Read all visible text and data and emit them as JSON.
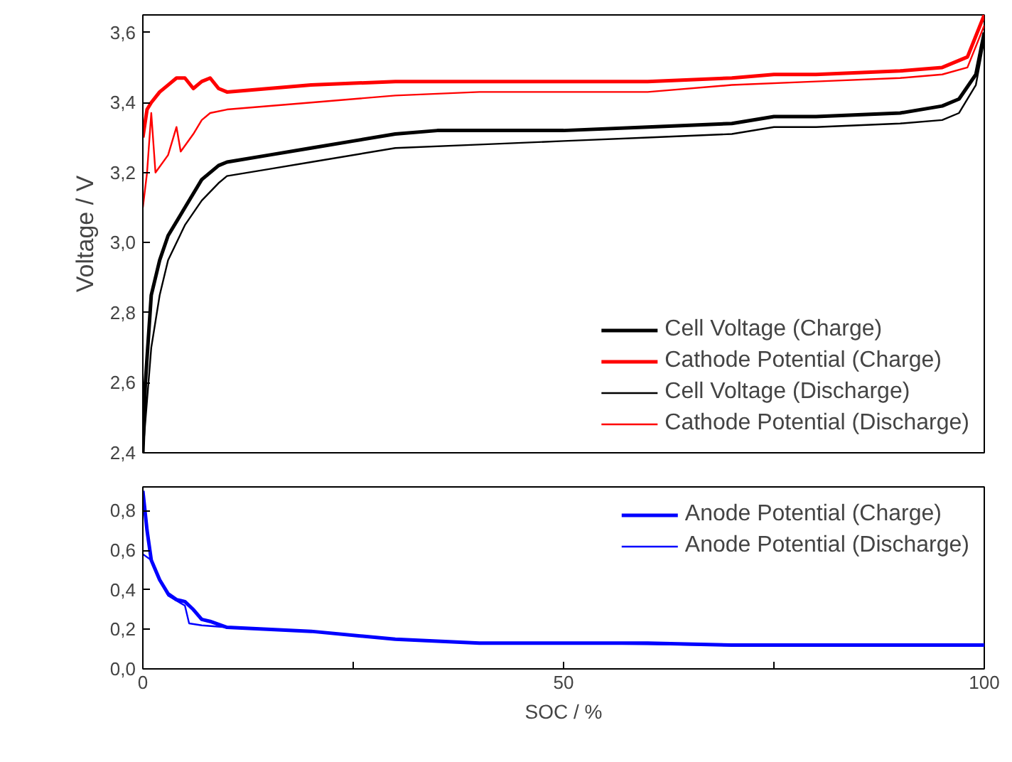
{
  "chart_data": [
    {
      "type": "line",
      "ylabel": "Voltage / V",
      "xlim": [
        0,
        100
      ],
      "ylim": [
        2.4,
        3.65
      ],
      "yticks": [
        {
          "value": 2.4,
          "label": "2,4"
        },
        {
          "value": 2.6,
          "label": "2,6"
        },
        {
          "value": 2.8,
          "label": "2,8"
        },
        {
          "value": 3.0,
          "label": "3,0"
        },
        {
          "value": 3.2,
          "label": "3,2"
        },
        {
          "value": 3.4,
          "label": "3,4"
        },
        {
          "value": 3.6,
          "label": "3,6"
        }
      ],
      "tick_labels": "y",
      "grid": false,
      "legend": "bottom right",
      "series": [
        {
          "name": "Cell Voltage (Charge)",
          "color": "#000000",
          "x": [
            0,
            0.3,
            1,
            2,
            3,
            5,
            7,
            9,
            10,
            15,
            20,
            25,
            30,
            35,
            40,
            50,
            60,
            70,
            75,
            80,
            90,
            95,
            97,
            99,
            100
          ],
          "values": [
            2.4,
            2.6,
            2.85,
            2.95,
            3.02,
            3.1,
            3.18,
            3.22,
            3.23,
            3.25,
            3.27,
            3.29,
            3.31,
            3.32,
            3.32,
            3.32,
            3.33,
            3.34,
            3.36,
            3.36,
            3.37,
            3.39,
            3.41,
            3.48,
            3.6
          ]
        },
        {
          "name": "Cathode Potential (Charge)",
          "color": "#ff0000",
          "x": [
            0,
            0.5,
            1,
            2,
            3,
            4,
            5,
            6,
            7,
            8,
            9,
            10,
            20,
            30,
            40,
            50,
            60,
            70,
            75,
            80,
            90,
            95,
            98,
            100
          ],
          "values": [
            3.3,
            3.38,
            3.4,
            3.43,
            3.45,
            3.47,
            3.47,
            3.44,
            3.46,
            3.47,
            3.44,
            3.43,
            3.45,
            3.46,
            3.46,
            3.46,
            3.46,
            3.47,
            3.48,
            3.48,
            3.49,
            3.5,
            3.53,
            3.65
          ]
        },
        {
          "name": "Cell Voltage (Discharge)",
          "color": "#000000",
          "x": [
            0,
            1,
            2,
            3,
            5,
            7,
            9,
            10,
            15,
            20,
            30,
            40,
            50,
            60,
            70,
            75,
            80,
            90,
            95,
            97,
            99,
            100
          ],
          "values": [
            2.4,
            2.7,
            2.85,
            2.95,
            3.05,
            3.12,
            3.17,
            3.19,
            3.21,
            3.23,
            3.27,
            3.28,
            3.29,
            3.3,
            3.31,
            3.33,
            3.33,
            3.34,
            3.35,
            3.37,
            3.45,
            3.58
          ]
        },
        {
          "name": "Cathode Potential (Discharge)",
          "color": "#ff0000",
          "x": [
            0,
            0.5,
            1,
            1.5,
            3,
            4,
            4.5,
            6,
            7,
            8,
            10,
            20,
            30,
            40,
            50,
            60,
            70,
            80,
            90,
            95,
            98,
            100
          ],
          "values": [
            3.1,
            3.2,
            3.37,
            3.2,
            3.25,
            3.33,
            3.26,
            3.31,
            3.35,
            3.37,
            3.38,
            3.4,
            3.42,
            3.43,
            3.43,
            3.43,
            3.45,
            3.46,
            3.47,
            3.48,
            3.5,
            3.62
          ]
        }
      ]
    },
    {
      "type": "line",
      "xlabel": "SOC / %",
      "xlim": [
        0,
        100
      ],
      "xticks": [
        0,
        {
          "value": 25,
          "label": null
        },
        50,
        {
          "value": 75,
          "label": null
        },
        100
      ],
      "ylim": [
        0,
        0.92
      ],
      "yticks": [
        {
          "value": 0,
          "label": "0,0"
        },
        {
          "value": 0.2,
          "label": "0,2"
        },
        {
          "value": 0.4,
          "label": "0,4"
        },
        {
          "value": 0.6,
          "label": "0,6"
        },
        {
          "value": 0.8,
          "label": "0,8"
        }
      ],
      "grid": false,
      "legend": "top right",
      "series": [
        {
          "name": "Anode Potential (Charge)",
          "color": "#0000ff",
          "x": [
            0,
            0.5,
            1,
            2,
            3,
            4,
            5,
            6,
            7,
            8,
            10,
            20,
            30,
            40,
            50,
            60,
            70,
            80,
            90,
            100
          ],
          "values": [
            0.9,
            0.7,
            0.55,
            0.45,
            0.38,
            0.35,
            0.34,
            0.3,
            0.25,
            0.24,
            0.21,
            0.19,
            0.15,
            0.13,
            0.13,
            0.13,
            0.12,
            0.12,
            0.12,
            0.12
          ]
        },
        {
          "name": "Anode Potential (Discharge)",
          "color": "#0000ff",
          "x": [
            0,
            1,
            2,
            3,
            5,
            5.5,
            7,
            10,
            20,
            30,
            40,
            50,
            70,
            100
          ],
          "values": [
            0.58,
            0.55,
            0.45,
            0.37,
            0.32,
            0.23,
            0.22,
            0.21,
            0.19,
            0.15,
            0.13,
            0.13,
            0.12,
            0.12
          ]
        }
      ]
    }
  ]
}
